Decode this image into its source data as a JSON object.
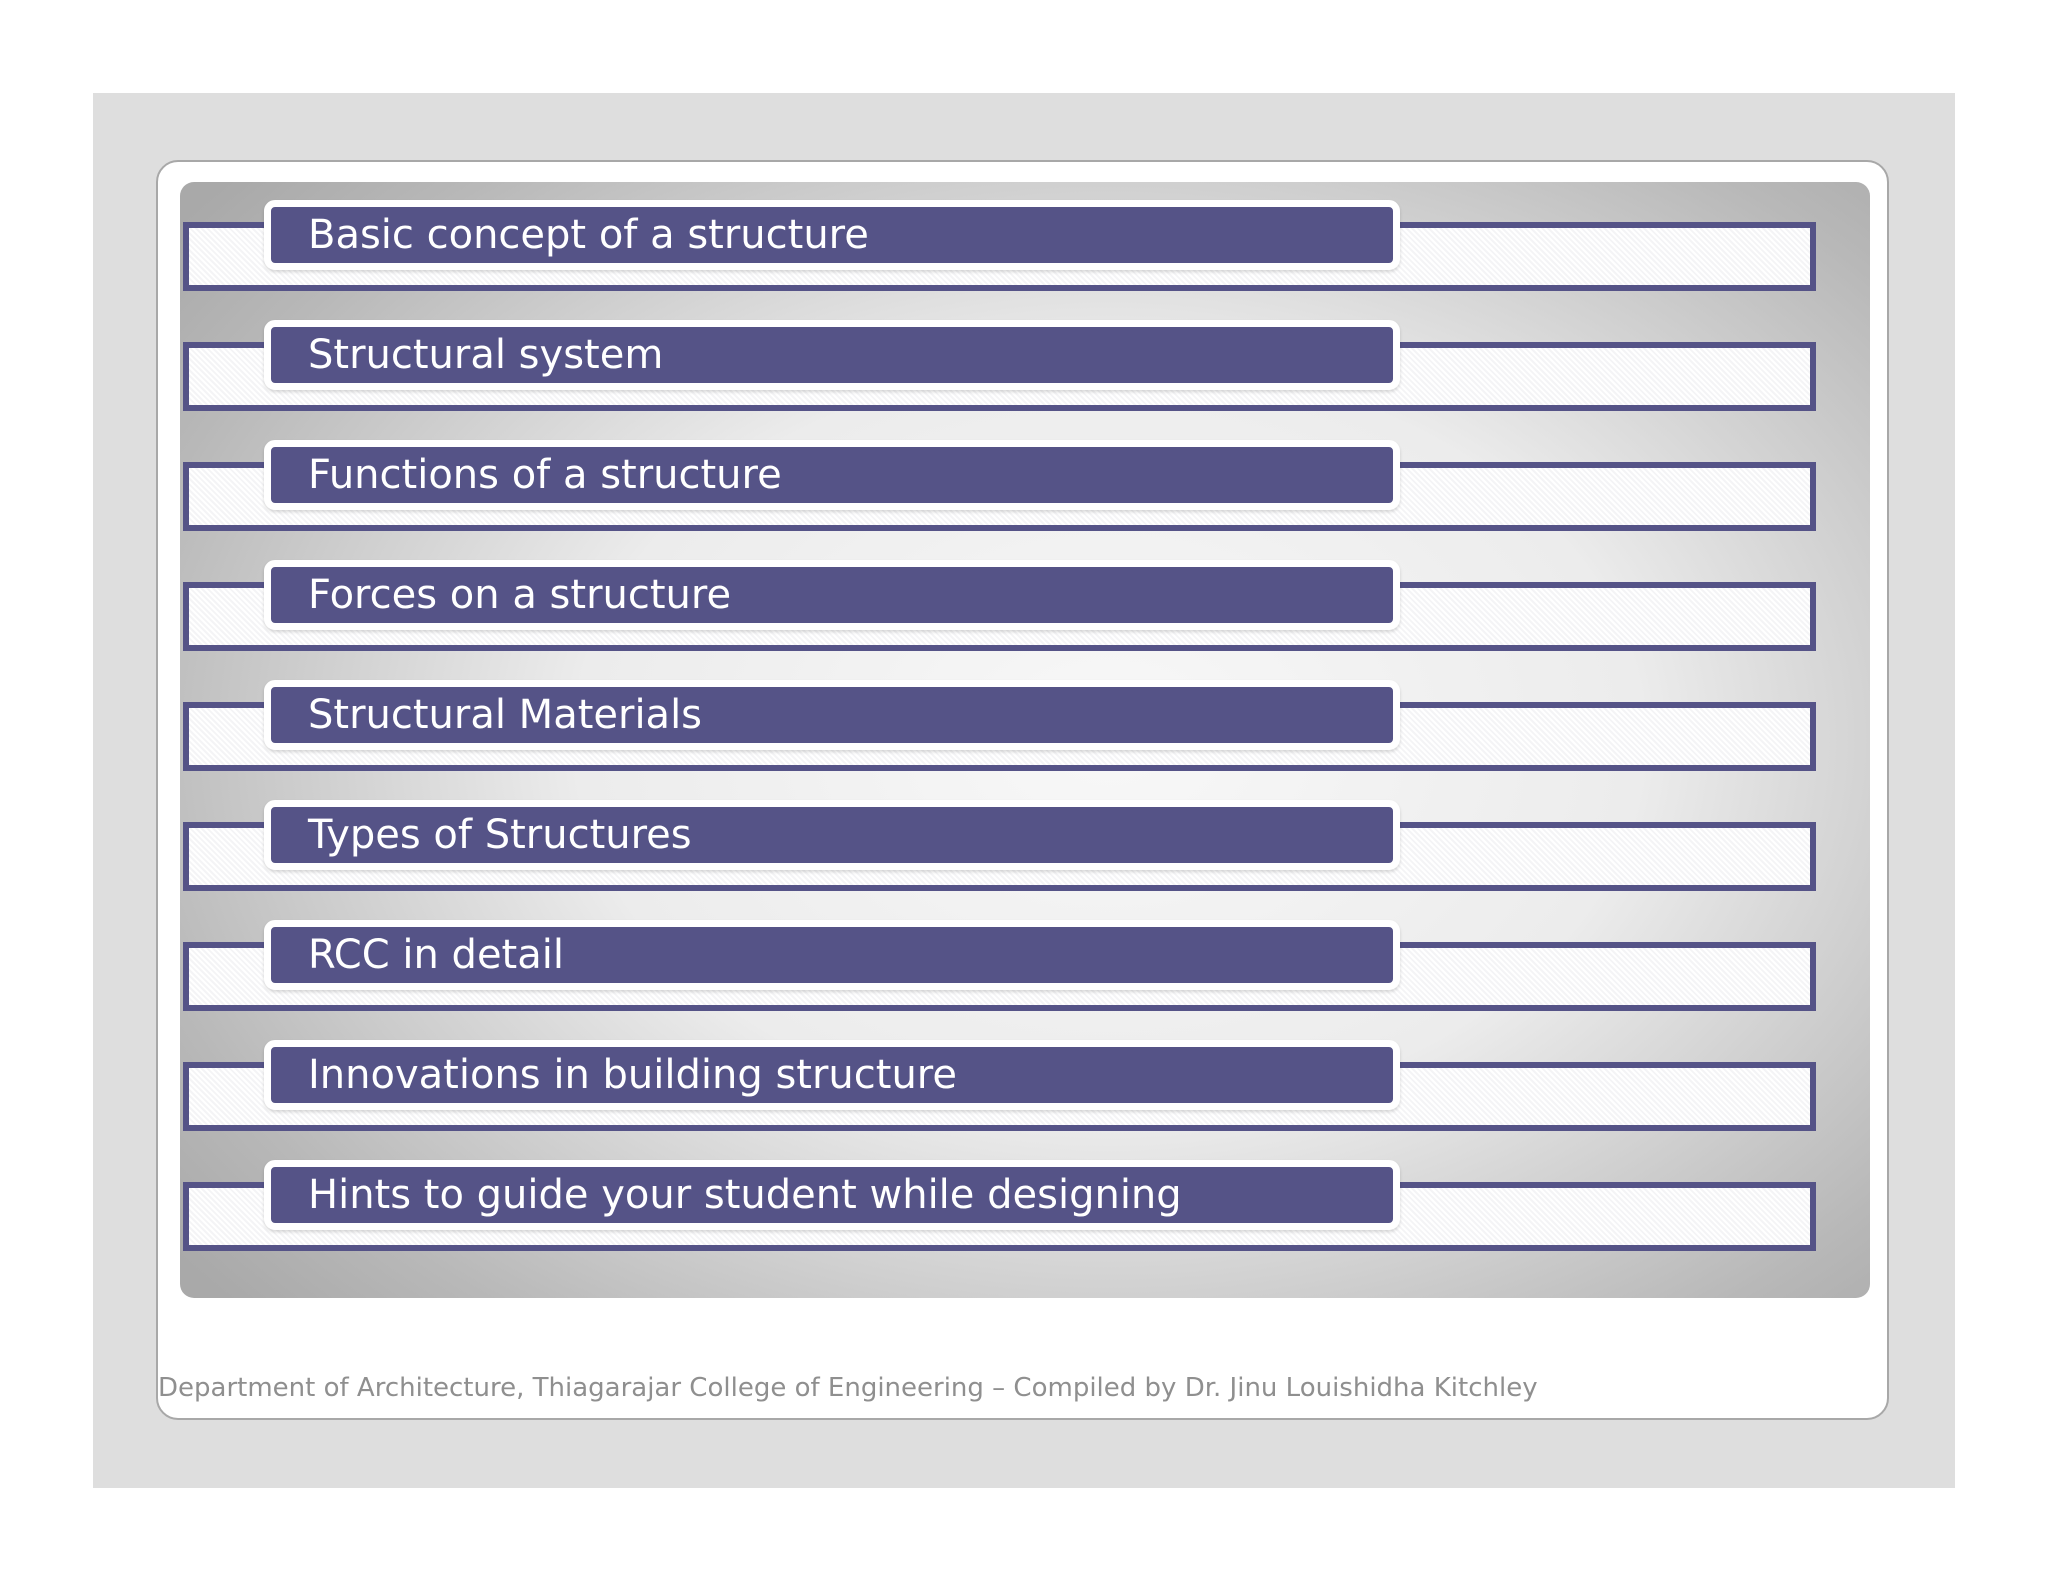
{
  "agenda": {
    "items": [
      {
        "label": "Basic concept of a structure"
      },
      {
        "label": "Structural system"
      },
      {
        "label": "Functions of a structure"
      },
      {
        "label": "Forces on a structure"
      },
      {
        "label": "Structural Materials"
      },
      {
        "label": "Types of Structures"
      },
      {
        "label": "RCC in detail"
      },
      {
        "label": "Innovations in building structure"
      },
      {
        "label": "Hints to guide your student while designing"
      }
    ]
  },
  "footer": {
    "text": "Department of Architecture, Thiagarajar College of Engineering – Compiled by Dr. Jinu Louishidha Kitchley"
  },
  "colors": {
    "accent": "#555387",
    "backdrop": "#dedede"
  }
}
